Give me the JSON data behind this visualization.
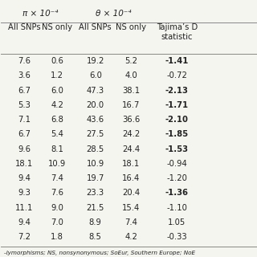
{
  "header_top": [
    "π × 10⁻⁴",
    "θ × 10⁻⁴"
  ],
  "col_headers": [
    "All SNPs",
    "NS only",
    "All SNPs",
    "NS only",
    "Tajima’s D\nstatistic"
  ],
  "rows": [
    [
      "7.6",
      "0.6",
      "19.2",
      "5.2",
      "-1.41"
    ],
    [
      "3.6",
      "1.2",
      "6.0",
      "4.0",
      "-0.72"
    ],
    [
      "6.7",
      "6.0",
      "47.3",
      "38.1",
      "-2.13"
    ],
    [
      "5.3",
      "4.2",
      "20.0",
      "16.7",
      "-1.71"
    ],
    [
      "7.1",
      "6.8",
      "43.6",
      "36.6",
      "-2.10"
    ],
    [
      "6.7",
      "5.4",
      "27.5",
      "24.2",
      "-1.85"
    ],
    [
      "9.6",
      "8.1",
      "28.5",
      "24.4",
      "-1.53"
    ],
    [
      "18.1",
      "10.9",
      "10.9",
      "18.1",
      "-0.94"
    ],
    [
      "9.4",
      "7.4",
      "19.7",
      "16.4",
      "-1.20"
    ],
    [
      "9.3",
      "7.6",
      "23.3",
      "20.4",
      "-1.36"
    ],
    [
      "11.1",
      "9.0",
      "21.5",
      "15.4",
      "-1.10"
    ],
    [
      "9.4",
      "7.0",
      "8.9",
      "7.4",
      "1.05"
    ],
    [
      "7.2",
      "1.8",
      "8.5",
      "4.2",
      "-0.33"
    ]
  ],
  "bold_col4": [
    0,
    2,
    3,
    4,
    5,
    6,
    9
  ],
  "footnote": "-lymorphisms; NS, nonsynonymous; SoEur, Southern Europe; NoE",
  "bg_color": "#f5f5f0",
  "line_color": "#888888",
  "text_color": "#222222",
  "font_size": 7.2,
  "header_font_size": 7.5
}
